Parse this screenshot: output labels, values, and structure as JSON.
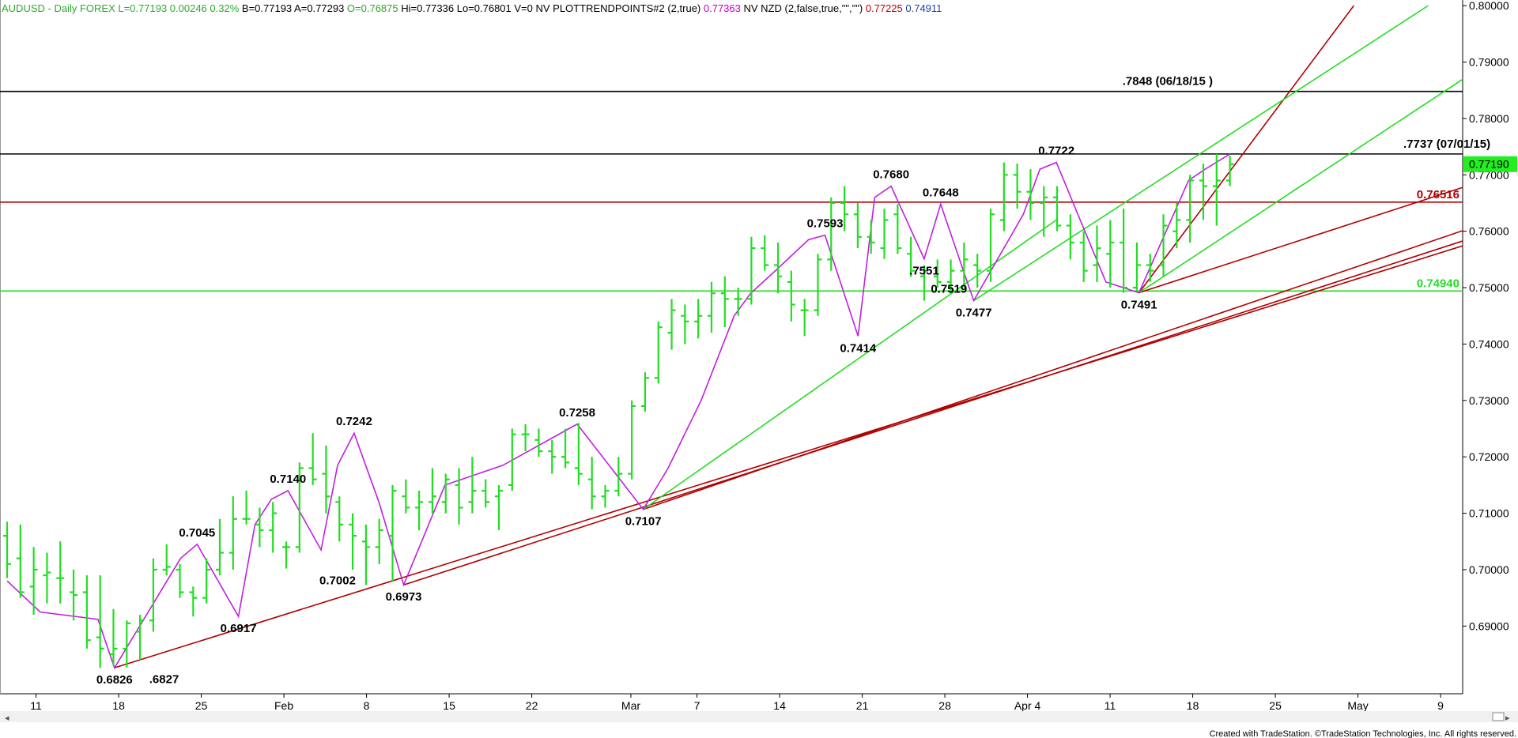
{
  "header": {
    "parts": [
      {
        "text": "AUDUSD - Daily  FOREX",
        "color": "#2fa82f"
      },
      {
        "text": "L=0.77193",
        "color": "#2fa82f"
      },
      {
        "text": "0.00246",
        "color": "#2fa82f"
      },
      {
        "text": "0.32%",
        "color": "#2fa82f"
      },
      {
        "text": "B=0.77193",
        "color": "#000000"
      },
      {
        "text": "A=0.77293",
        "color": "#000000"
      },
      {
        "text": "O=0.76875",
        "color": "#2fa82f"
      },
      {
        "text": "Hi=0.77336",
        "color": "#000000"
      },
      {
        "text": "Lo=0.76801",
        "color": "#000000"
      },
      {
        "text": "V=0",
        "color": "#000000"
      },
      {
        "text": "NV",
        "color": "#000000"
      },
      {
        "text": "PLOTTRENDPOINTS#2 (2,true)",
        "color": "#000000"
      },
      {
        "text": "0.77363",
        "color": "#c000c0"
      },
      {
        "text": "NV NZD (2,false,true,\"\",\"\")",
        "color": "#000000"
      },
      {
        "text": "0.77225",
        "color": "#c00000"
      },
      {
        "text": "0.74911",
        "color": "#1f3fa0"
      }
    ]
  },
  "footer_text": "Created with TradeStation. ©TradeStation Technologies, Inc. All rights reserved.",
  "colors": {
    "bars": "#22dd22",
    "zigzag": "#c020e0",
    "red_line": "#b00000",
    "green_line": "#22dd22",
    "black_line": "#000000",
    "last_price_box": "#22ee22"
  },
  "chart_data": {
    "type": "ohlc",
    "symbol": "AUDUSD",
    "y_axis": {
      "ticks": [
        0.69,
        0.7,
        0.71,
        0.72,
        0.73,
        0.74,
        0.75,
        0.76,
        0.77,
        0.78,
        0.79,
        0.8
      ],
      "tick_labels": [
        "0.69000",
        "0.70000",
        "0.71000",
        "0.72000",
        "0.73000",
        "0.74000",
        "0.75000",
        "0.76000",
        "0.77000",
        "0.78000",
        "0.79000",
        "0.80000"
      ],
      "range": [
        0.678,
        0.801
      ]
    },
    "x_axis": {
      "labels": [
        {
          "text": "11",
          "bar": 3.5
        },
        {
          "text": "18",
          "bar": 13.5
        },
        {
          "text": "25",
          "bar": 23.5
        },
        {
          "text": "Feb",
          "bar": 33.5
        },
        {
          "text": "8",
          "bar": 43.5
        },
        {
          "text": "15",
          "bar": 53.5
        },
        {
          "text": "22",
          "bar": 63.5
        },
        {
          "text": "Mar",
          "bar": 75.5
        },
        {
          "text": "7",
          "bar": 83.5
        },
        {
          "text": "14",
          "bar": 93.5
        },
        {
          "text": "21",
          "bar": 103.5
        },
        {
          "text": "28",
          "bar": 113.5
        },
        {
          "text": "Apr 4",
          "bar": 123.5
        },
        {
          "text": "11",
          "bar": 133.5
        },
        {
          "text": "18",
          "bar": 143.5
        },
        {
          "text": "25",
          "bar": 153.5
        },
        {
          "text": "May",
          "bar": 163.5
        },
        {
          "text": "9",
          "bar": 173.5
        }
      ],
      "bar_count_visible": 180
    },
    "bars": [
      {
        "o": 0.706,
        "h": 0.7085,
        "l": 0.6985,
        "c": 0.701
      },
      {
        "o": 0.702,
        "h": 0.708,
        "l": 0.695,
        "c": 0.696
      },
      {
        "o": 0.697,
        "h": 0.704,
        "l": 0.692,
        "c": 0.7
      },
      {
        "o": 0.699,
        "h": 0.703,
        "l": 0.694,
        "c": 0.6995
      },
      {
        "o": 0.6985,
        "h": 0.705,
        "l": 0.694,
        "c": 0.6985
      },
      {
        "o": 0.696,
        "h": 0.7,
        "l": 0.691,
        "c": 0.6955
      },
      {
        "o": 0.696,
        "h": 0.699,
        "l": 0.686,
        "c": 0.6875
      },
      {
        "o": 0.688,
        "h": 0.699,
        "l": 0.6826,
        "c": 0.686
      },
      {
        "o": 0.685,
        "h": 0.693,
        "l": 0.683,
        "c": 0.686
      },
      {
        "o": 0.686,
        "h": 0.691,
        "l": 0.6827,
        "c": 0.6905
      },
      {
        "o": 0.689,
        "h": 0.692,
        "l": 0.684,
        "c": 0.691
      },
      {
        "o": 0.691,
        "h": 0.702,
        "l": 0.689,
        "c": 0.7
      },
      {
        "o": 0.7,
        "h": 0.7045,
        "l": 0.699,
        "c": 0.7005
      },
      {
        "o": 0.7,
        "h": 0.701,
        "l": 0.695,
        "c": 0.696
      },
      {
        "o": 0.696,
        "h": 0.697,
        "l": 0.6917,
        "c": 0.695
      },
      {
        "o": 0.695,
        "h": 0.702,
        "l": 0.694,
        "c": 0.7
      },
      {
        "o": 0.7,
        "h": 0.709,
        "l": 0.699,
        "c": 0.703
      },
      {
        "o": 0.703,
        "h": 0.713,
        "l": 0.7,
        "c": 0.709
      },
      {
        "o": 0.709,
        "h": 0.714,
        "l": 0.708,
        "c": 0.709
      },
      {
        "o": 0.708,
        "h": 0.711,
        "l": 0.704,
        "c": 0.707
      },
      {
        "o": 0.707,
        "h": 0.712,
        "l": 0.703,
        "c": 0.71
      },
      {
        "o": 0.704,
        "h": 0.705,
        "l": 0.7002,
        "c": 0.704
      },
      {
        "o": 0.704,
        "h": 0.719,
        "l": 0.703,
        "c": 0.718
      },
      {
        "o": 0.718,
        "h": 0.7242,
        "l": 0.715,
        "c": 0.716
      },
      {
        "o": 0.717,
        "h": 0.722,
        "l": 0.71,
        "c": 0.713
      },
      {
        "o": 0.712,
        "h": 0.713,
        "l": 0.705,
        "c": 0.708
      },
      {
        "o": 0.708,
        "h": 0.71,
        "l": 0.7,
        "c": 0.706
      },
      {
        "o": 0.705,
        "h": 0.708,
        "l": 0.6973,
        "c": 0.704
      },
      {
        "o": 0.704,
        "h": 0.709,
        "l": 0.701,
        "c": 0.707
      },
      {
        "o": 0.706,
        "h": 0.715,
        "l": 0.698,
        "c": 0.714
      },
      {
        "o": 0.713,
        "h": 0.716,
        "l": 0.71,
        "c": 0.711
      },
      {
        "o": 0.711,
        "h": 0.714,
        "l": 0.707,
        "c": 0.712
      },
      {
        "o": 0.712,
        "h": 0.718,
        "l": 0.71,
        "c": 0.713
      },
      {
        "o": 0.712,
        "h": 0.717,
        "l": 0.71,
        "c": 0.716
      },
      {
        "o": 0.715,
        "h": 0.718,
        "l": 0.708,
        "c": 0.711
      },
      {
        "o": 0.712,
        "h": 0.72,
        "l": 0.71,
        "c": 0.714
      },
      {
        "o": 0.714,
        "h": 0.716,
        "l": 0.711,
        "c": 0.712
      },
      {
        "o": 0.713,
        "h": 0.715,
        "l": 0.707,
        "c": 0.714
      },
      {
        "o": 0.715,
        "h": 0.725,
        "l": 0.714,
        "c": 0.724
      },
      {
        "o": 0.724,
        "h": 0.7258,
        "l": 0.721,
        "c": 0.724
      },
      {
        "o": 0.723,
        "h": 0.725,
        "l": 0.72,
        "c": 0.721
      },
      {
        "o": 0.721,
        "h": 0.723,
        "l": 0.717,
        "c": 0.72
      },
      {
        "o": 0.72,
        "h": 0.725,
        "l": 0.718,
        "c": 0.719
      },
      {
        "o": 0.718,
        "h": 0.726,
        "l": 0.715,
        "c": 0.717
      },
      {
        "o": 0.716,
        "h": 0.72,
        "l": 0.7107,
        "c": 0.713
      },
      {
        "o": 0.713,
        "h": 0.715,
        "l": 0.711,
        "c": 0.714
      },
      {
        "o": 0.714,
        "h": 0.72,
        "l": 0.713,
        "c": 0.717
      },
      {
        "o": 0.717,
        "h": 0.73,
        "l": 0.716,
        "c": 0.729
      },
      {
        "o": 0.729,
        "h": 0.735,
        "l": 0.728,
        "c": 0.734
      },
      {
        "o": 0.734,
        "h": 0.744,
        "l": 0.733,
        "c": 0.743
      },
      {
        "o": 0.742,
        "h": 0.748,
        "l": 0.739,
        "c": 0.746
      },
      {
        "o": 0.745,
        "h": 0.747,
        "l": 0.74,
        "c": 0.744
      },
      {
        "o": 0.744,
        "h": 0.748,
        "l": 0.741,
        "c": 0.745
      },
      {
        "o": 0.745,
        "h": 0.751,
        "l": 0.742,
        "c": 0.749
      },
      {
        "o": 0.749,
        "h": 0.752,
        "l": 0.743,
        "c": 0.748
      },
      {
        "o": 0.748,
        "h": 0.75,
        "l": 0.745,
        "c": 0.748
      },
      {
        "o": 0.748,
        "h": 0.759,
        "l": 0.747,
        "c": 0.757
      },
      {
        "o": 0.757,
        "h": 0.7593,
        "l": 0.753,
        "c": 0.754
      },
      {
        "o": 0.754,
        "h": 0.758,
        "l": 0.749,
        "c": 0.752
      },
      {
        "o": 0.751,
        "h": 0.753,
        "l": 0.744,
        "c": 0.747
      },
      {
        "o": 0.746,
        "h": 0.748,
        "l": 0.7414,
        "c": 0.746
      },
      {
        "o": 0.746,
        "h": 0.756,
        "l": 0.745,
        "c": 0.755
      },
      {
        "o": 0.755,
        "h": 0.766,
        "l": 0.753,
        "c": 0.765
      },
      {
        "o": 0.765,
        "h": 0.768,
        "l": 0.76,
        "c": 0.763
      },
      {
        "o": 0.763,
        "h": 0.765,
        "l": 0.757,
        "c": 0.759
      },
      {
        "o": 0.759,
        "h": 0.762,
        "l": 0.756,
        "c": 0.758
      },
      {
        "o": 0.757,
        "h": 0.764,
        "l": 0.7551,
        "c": 0.762
      },
      {
        "o": 0.763,
        "h": 0.7648,
        "l": 0.756,
        "c": 0.757
      },
      {
        "o": 0.756,
        "h": 0.759,
        "l": 0.7519,
        "c": 0.753
      },
      {
        "o": 0.752,
        "h": 0.754,
        "l": 0.7477,
        "c": 0.753
      },
      {
        "o": 0.752,
        "h": 0.755,
        "l": 0.75,
        "c": 0.751
      },
      {
        "o": 0.751,
        "h": 0.755,
        "l": 0.749,
        "c": 0.753
      },
      {
        "o": 0.753,
        "h": 0.758,
        "l": 0.75,
        "c": 0.755
      },
      {
        "o": 0.754,
        "h": 0.756,
        "l": 0.75,
        "c": 0.753
      },
      {
        "o": 0.753,
        "h": 0.764,
        "l": 0.751,
        "c": 0.763
      },
      {
        "o": 0.762,
        "h": 0.7722,
        "l": 0.76,
        "c": 0.77
      },
      {
        "o": 0.77,
        "h": 0.772,
        "l": 0.764,
        "c": 0.767
      },
      {
        "o": 0.767,
        "h": 0.771,
        "l": 0.762,
        "c": 0.765
      },
      {
        "o": 0.765,
        "h": 0.768,
        "l": 0.759,
        "c": 0.766
      },
      {
        "o": 0.766,
        "h": 0.768,
        "l": 0.76,
        "c": 0.761
      },
      {
        "o": 0.761,
        "h": 0.763,
        "l": 0.755,
        "c": 0.758
      },
      {
        "o": 0.758,
        "h": 0.76,
        "l": 0.751,
        "c": 0.753
      },
      {
        "o": 0.754,
        "h": 0.761,
        "l": 0.751,
        "c": 0.757
      },
      {
        "o": 0.756,
        "h": 0.762,
        "l": 0.75,
        "c": 0.758
      },
      {
        "o": 0.758,
        "h": 0.764,
        "l": 0.7491,
        "c": 0.75
      },
      {
        "o": 0.75,
        "h": 0.758,
        "l": 0.7495,
        "c": 0.754
      },
      {
        "o": 0.754,
        "h": 0.756,
        "l": 0.751,
        "c": 0.753
      },
      {
        "o": 0.754,
        "h": 0.763,
        "l": 0.752,
        "c": 0.761
      },
      {
        "o": 0.76,
        "h": 0.765,
        "l": 0.757,
        "c": 0.762
      },
      {
        "o": 0.762,
        "h": 0.77,
        "l": 0.758,
        "c": 0.769
      },
      {
        "o": 0.769,
        "h": 0.772,
        "l": 0.762,
        "c": 0.768
      },
      {
        "o": 0.768,
        "h": 0.7737,
        "l": 0.761,
        "c": 0.769
      },
      {
        "o": 0.769,
        "h": 0.7734,
        "l": 0.768,
        "c": 0.7719
      }
    ],
    "bar_start_index": 0,
    "zigzag_points": [
      {
        "bar": 0,
        "price": 0.698
      },
      {
        "bar": 4,
        "price": 0.6925
      },
      {
        "bar": 11,
        "price": 0.6912
      },
      {
        "bar": 13,
        "price": 0.6826
      },
      {
        "bar": 21,
        "price": 0.702
      },
      {
        "bar": 23,
        "price": 0.7045
      },
      {
        "bar": 28,
        "price": 0.6917
      },
      {
        "bar": 30,
        "price": 0.708
      },
      {
        "bar": 32,
        "price": 0.7125
      },
      {
        "bar": 34,
        "price": 0.714
      },
      {
        "bar": 38,
        "price": 0.7035
      },
      {
        "bar": 40,
        "price": 0.7185
      },
      {
        "bar": 42,
        "price": 0.7242
      },
      {
        "bar": 45,
        "price": 0.712
      },
      {
        "bar": 48,
        "price": 0.6973
      },
      {
        "bar": 53,
        "price": 0.715
      },
      {
        "bar": 60,
        "price": 0.7185
      },
      {
        "bar": 68,
        "price": 0.725
      },
      {
        "bar": 69,
        "price": 0.7258
      },
      {
        "bar": 77,
        "price": 0.7107
      },
      {
        "bar": 80,
        "price": 0.718
      },
      {
        "bar": 84,
        "price": 0.73
      },
      {
        "bar": 88,
        "price": 0.745
      },
      {
        "bar": 90,
        "price": 0.749
      },
      {
        "bar": 93,
        "price": 0.753
      },
      {
        "bar": 97,
        "price": 0.7585
      },
      {
        "bar": 99,
        "price": 0.7593
      },
      {
        "bar": 103,
        "price": 0.7414
      },
      {
        "bar": 105,
        "price": 0.766
      },
      {
        "bar": 107,
        "price": 0.768
      },
      {
        "bar": 111,
        "price": 0.7551
      },
      {
        "bar": 113,
        "price": 0.7648
      },
      {
        "bar": 116,
        "price": 0.7519
      },
      {
        "bar": 117,
        "price": 0.7477
      },
      {
        "bar": 123,
        "price": 0.763
      },
      {
        "bar": 125,
        "price": 0.771
      },
      {
        "bar": 127,
        "price": 0.7722
      },
      {
        "bar": 133,
        "price": 0.751
      },
      {
        "bar": 137,
        "price": 0.7491
      },
      {
        "bar": 143,
        "price": 0.769
      },
      {
        "bar": 145,
        "price": 0.771
      },
      {
        "bar": 148,
        "price": 0.7737
      }
    ],
    "horizontal_levels": [
      {
        "price": 0.7848,
        "label": ".7848 (06/18/15 )",
        "color": "#000000",
        "label_bar": 135
      },
      {
        "price": 0.7737,
        "label": ".7737 (07/01/15)",
        "color": "#000000",
        "label_bar": 169
      },
      {
        "price": 0.76516,
        "label": "0.76516",
        "color": "#b00000",
        "label_bar": null
      },
      {
        "price": 0.7494,
        "label": "0.74940",
        "color": "#22dd22",
        "label_bar": null
      }
    ],
    "trend_lines": [
      {
        "color": "#b00000",
        "from": {
          "bar": 13,
          "price": 0.6826
        },
        "to": {
          "bar": 184,
          "price": 0.761
        }
      },
      {
        "color": "#b00000",
        "from": {
          "bar": 48,
          "price": 0.6973
        },
        "to": {
          "bar": 184,
          "price": 0.762
        }
      },
      {
        "color": "#b00000",
        "from": {
          "bar": 77,
          "price": 0.7107
        },
        "to": {
          "bar": 184,
          "price": 0.764
        }
      },
      {
        "color": "#b00000",
        "from": {
          "bar": 137,
          "price": 0.7491
        },
        "to": {
          "bar": 184,
          "price": 0.7715
        }
      },
      {
        "color": "#b00000",
        "from": {
          "bar": 137,
          "price": 0.7491
        },
        "to": {
          "bar": 163,
          "price": 0.8
        }
      },
      {
        "color": "#22dd22",
        "from": {
          "bar": 77,
          "price": 0.7107
        },
        "to": {
          "bar": 127,
          "price": 0.762
        }
      },
      {
        "color": "#22dd22",
        "from": {
          "bar": 117,
          "price": 0.7477
        },
        "to": {
          "bar": 172,
          "price": 0.8
        }
      },
      {
        "color": "#22dd22",
        "from": {
          "bar": 137,
          "price": 0.7491
        },
        "to": {
          "bar": 184,
          "price": 0.7945
        }
      }
    ],
    "pivot_labels": [
      {
        "text": "0.6826",
        "bar": 13,
        "price": 0.6826,
        "pos": "below"
      },
      {
        "text": ".6827",
        "bar": 19,
        "price": 0.6827,
        "pos": "below"
      },
      {
        "text": "0.7045",
        "bar": 23,
        "price": 0.7045,
        "pos": "above"
      },
      {
        "text": "0.6917",
        "bar": 28,
        "price": 0.6917,
        "pos": "below"
      },
      {
        "text": "0.7140",
        "bar": 34,
        "price": 0.714,
        "pos": "above"
      },
      {
        "text": "0.7002",
        "bar": 40,
        "price": 0.7002,
        "pos": "below"
      },
      {
        "text": "0.7242",
        "bar": 42,
        "price": 0.7242,
        "pos": "above"
      },
      {
        "text": "0.6973",
        "bar": 48,
        "price": 0.6973,
        "pos": "below"
      },
      {
        "text": "0.7258",
        "bar": 69,
        "price": 0.7258,
        "pos": "above"
      },
      {
        "text": "0.7107",
        "bar": 77,
        "price": 0.7107,
        "pos": "below"
      },
      {
        "text": "0.7593",
        "bar": 99,
        "price": 0.7593,
        "pos": "above"
      },
      {
        "text": "0.7414",
        "bar": 103,
        "price": 0.7414,
        "pos": "below"
      },
      {
        "text": "0.7680",
        "bar": 107,
        "price": 0.768,
        "pos": "above"
      },
      {
        "text": ".7551",
        "bar": 111,
        "price": 0.7551,
        "pos": "below"
      },
      {
        "text": "0.7648",
        "bar": 113,
        "price": 0.7648,
        "pos": "above"
      },
      {
        "text": "0.7519",
        "bar": 114,
        "price": 0.7519,
        "pos": "below"
      },
      {
        "text": "0.7477",
        "bar": 117,
        "price": 0.7477,
        "pos": "below"
      },
      {
        "text": "0.7722",
        "bar": 127,
        "price": 0.7722,
        "pos": "above"
      },
      {
        "text": "0.7491",
        "bar": 137,
        "price": 0.7491,
        "pos": "below"
      }
    ],
    "last_price": {
      "price": 0.7719,
      "label": "0.77190"
    }
  }
}
